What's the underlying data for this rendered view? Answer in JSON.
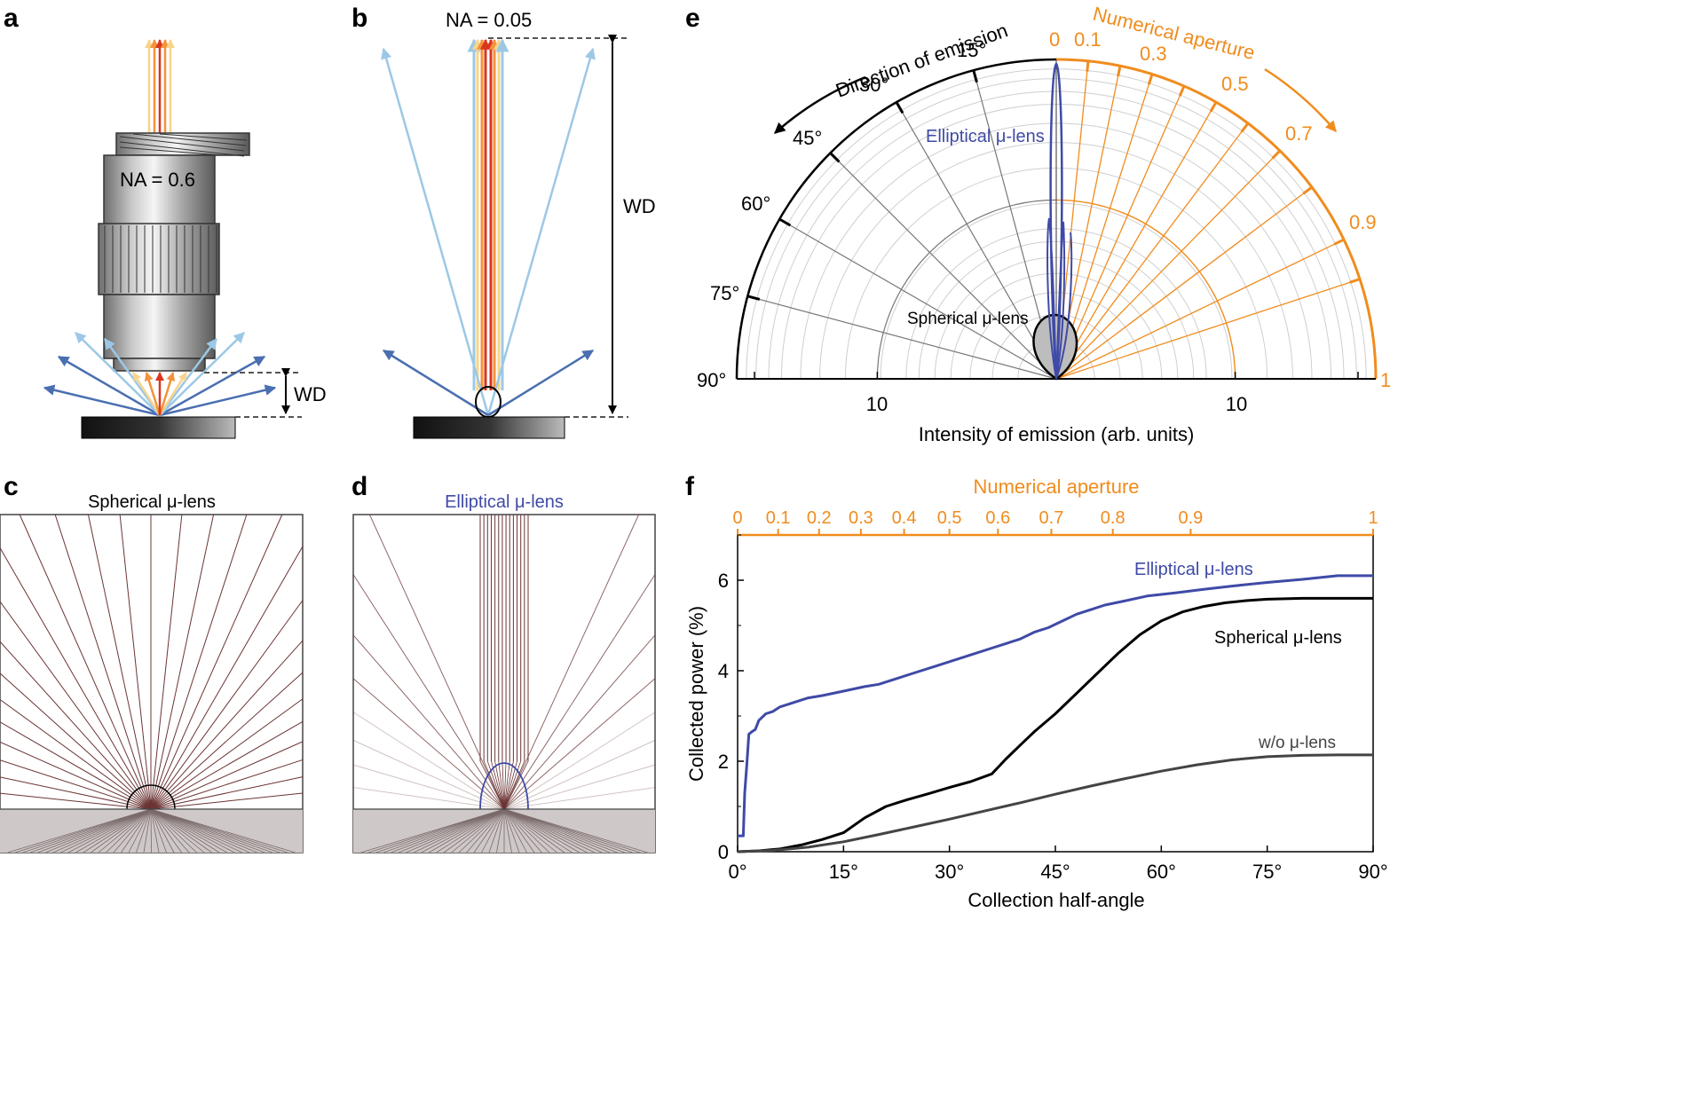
{
  "colors": {
    "blue_curve": "#3f4aa6",
    "black": "#000000",
    "gray_curve": "#444444",
    "orange": "#f08c1e",
    "ray_dark": "#6b3434",
    "ray_light": "#b59a9a",
    "beam_red": "#d9361e",
    "beam_orange": "#f3923a",
    "beam_yellow": "#f8d48a",
    "beam_lightblue": "#9cc8e6",
    "beam_blue": "#4a6fb0"
  },
  "panels": {
    "a": {
      "letter": "a",
      "na_label": "NA = 0.6",
      "wd_label": "WD"
    },
    "b": {
      "letter": "b",
      "na_label": "NA = 0.05",
      "wd_label": "WD"
    },
    "c": {
      "letter": "c",
      "title": "Spherical μ-lens"
    },
    "d": {
      "letter": "d",
      "title": "Elliptical μ-lens"
    },
    "e": {
      "letter": "e",
      "direction_label": "Direction of emission",
      "na_label": "Numerical aperture",
      "xlabel": "Intensity of emission (arb. units)",
      "angle_labels": [
        "15°",
        "30°",
        "45°",
        "60°",
        "75°",
        "90°"
      ],
      "na_tick_labels": [
        "0",
        "0.1",
        "0.3",
        "0.5",
        "0.7",
        "0.9",
        "1"
      ],
      "radial_labels": [
        "10",
        "10"
      ],
      "elliptical_label": "Elliptical μ-lens",
      "spherical_label": "Spherical μ-lens"
    },
    "f": {
      "letter": "f"
    }
  },
  "chart_data": {
    "type": "line",
    "title": "",
    "xlabel": "Collection half-angle",
    "ylabel": "Collected power (%)",
    "top_axis_label": "Numerical aperture",
    "top_ticks": [
      "0",
      "0.1",
      "0.2",
      "0.3",
      "0.4",
      "0.5",
      "0.6",
      "0.7",
      "0.8",
      "0.9",
      "1"
    ],
    "top_tick_values": [
      0,
      0.1,
      0.2,
      0.3,
      0.4,
      0.5,
      0.6,
      0.7,
      0.8,
      0.9,
      1
    ],
    "x_tick_labels": [
      "0°",
      "15°",
      "30°",
      "45°",
      "60°",
      "75°",
      "90°"
    ],
    "y_tick_labels": [
      "0",
      "2",
      "4",
      "6"
    ],
    "xlim": [
      0,
      90
    ],
    "ylim": [
      0,
      7
    ],
    "series": [
      {
        "name": "Elliptical μ-lens",
        "color": "#3f4aa6",
        "x": [
          0,
          0.8,
          1.0,
          1.3,
          1.6,
          2.0,
          2.5,
          3,
          4,
          5,
          6,
          8,
          10,
          12,
          15,
          18,
          20,
          22,
          25,
          28,
          30,
          33,
          36,
          38,
          40,
          42,
          44,
          46,
          48,
          50,
          52,
          55,
          58,
          62,
          66,
          70,
          75,
          80,
          85,
          90
        ],
        "y": [
          0.35,
          0.35,
          1.3,
          1.9,
          2.6,
          2.65,
          2.7,
          2.9,
          3.05,
          3.1,
          3.2,
          3.3,
          3.4,
          3.45,
          3.55,
          3.65,
          3.7,
          3.8,
          3.95,
          4.1,
          4.2,
          4.35,
          4.5,
          4.6,
          4.7,
          4.85,
          4.95,
          5.1,
          5.25,
          5.35,
          5.45,
          5.55,
          5.65,
          5.72,
          5.8,
          5.87,
          5.95,
          6.02,
          6.1,
          6.1
        ]
      },
      {
        "name": "Spherical μ-lens",
        "color": "#000000",
        "x": [
          0,
          3,
          6,
          9,
          12,
          15,
          18,
          21,
          24,
          27,
          30,
          33,
          36,
          38,
          40,
          42,
          45,
          48,
          51,
          54,
          57,
          60,
          63,
          66,
          69,
          72,
          75,
          80,
          85,
          90
        ],
        "y": [
          0,
          0.02,
          0.06,
          0.15,
          0.27,
          0.42,
          0.75,
          1.0,
          1.15,
          1.28,
          1.42,
          1.55,
          1.72,
          2.05,
          2.35,
          2.65,
          3.05,
          3.5,
          3.95,
          4.4,
          4.8,
          5.1,
          5.3,
          5.42,
          5.5,
          5.55,
          5.58,
          5.6,
          5.6,
          5.6
        ]
      },
      {
        "name": "w/o μ-lens",
        "color": "#444444",
        "x": [
          0,
          5,
          10,
          15,
          20,
          25,
          30,
          35,
          40,
          45,
          50,
          55,
          60,
          65,
          70,
          75,
          80,
          85,
          90
        ],
        "y": [
          0,
          0.03,
          0.1,
          0.22,
          0.38,
          0.55,
          0.72,
          0.9,
          1.08,
          1.27,
          1.45,
          1.62,
          1.78,
          1.92,
          2.03,
          2.1,
          2.13,
          2.14,
          2.14
        ]
      }
    ],
    "series_labels": [
      "Elliptical μ-lens",
      "Spherical μ-lens",
      "w/o μ-lens"
    ]
  }
}
